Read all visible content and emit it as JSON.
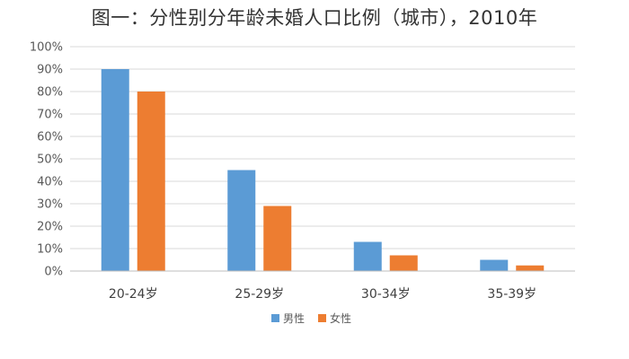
{
  "chart_data": {
    "type": "bar",
    "title": "图一：分性别分年龄未婚人口比例（城市），2010年",
    "categories": [
      "20-24岁",
      "25-29岁",
      "30-34岁",
      "35-39岁"
    ],
    "series": [
      {
        "name": "男性",
        "values": [
          90,
          45,
          13,
          5
        ],
        "color": "#5B9BD5"
      },
      {
        "name": "女性",
        "values": [
          80,
          29,
          7,
          2.5
        ],
        "color": "#ED7D31"
      }
    ],
    "ylim": [
      0,
      100
    ],
    "yticks": [
      0,
      10,
      20,
      30,
      40,
      50,
      60,
      70,
      80,
      90,
      100
    ],
    "y_unit": "%",
    "grid": true,
    "legend_position": "bottom-center"
  }
}
